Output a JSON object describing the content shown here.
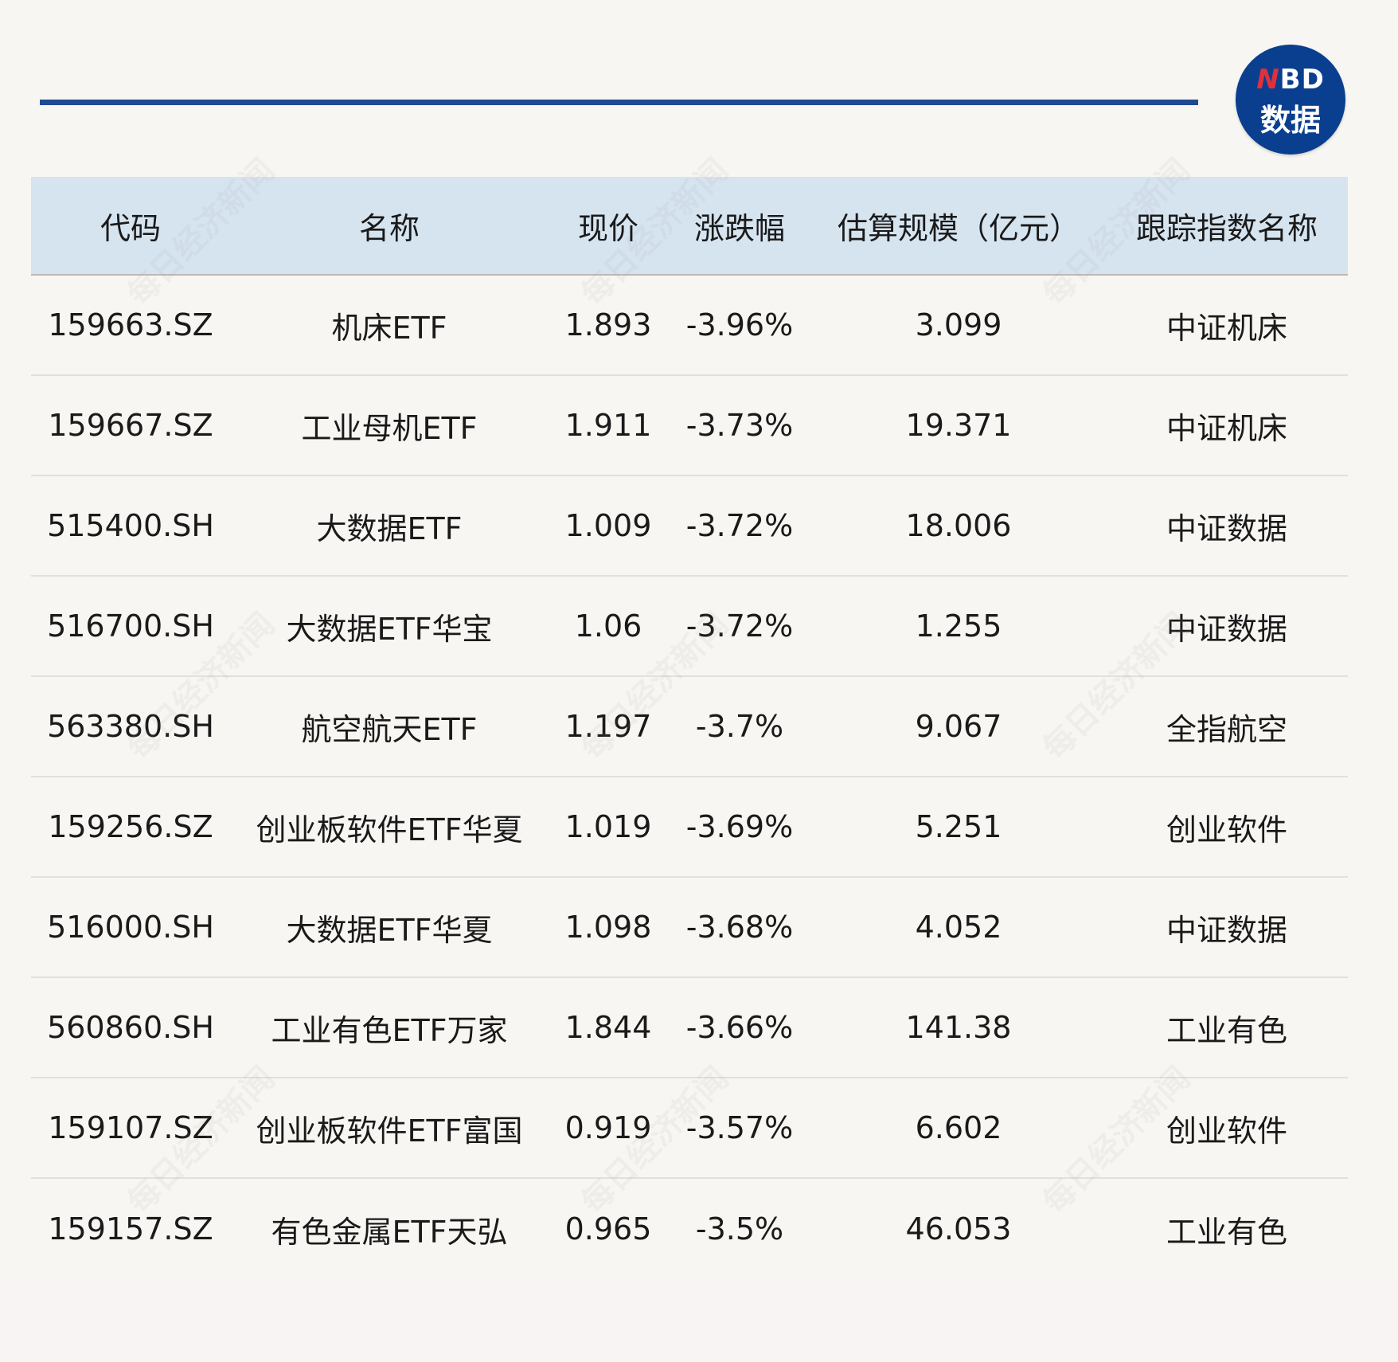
{
  "brand": {
    "logo_top": "NBD",
    "logo_bottom": "数据",
    "watermark": "每日经济新闻",
    "accent": "#1f4a92",
    "header_bg": "#d6e4f0"
  },
  "table": {
    "headers": [
      "代码",
      "名称",
      "现价",
      "涨跌幅",
      "估算规模（亿元）",
      "跟踪指数名称"
    ],
    "rows": [
      [
        "159663.SZ",
        "机床ETF",
        "1.893",
        "-3.96%",
        "3.099",
        "中证机床"
      ],
      [
        "159667.SZ",
        "工业母机ETF",
        "1.911",
        "-3.73%",
        "19.371",
        "中证机床"
      ],
      [
        "515400.SH",
        "大数据ETF",
        "1.009",
        "-3.72%",
        "18.006",
        "中证数据"
      ],
      [
        "516700.SH",
        "大数据ETF华宝",
        "1.06",
        "-3.72%",
        "1.255",
        "中证数据"
      ],
      [
        "563380.SH",
        "航空航天ETF",
        "1.197",
        "-3.7%",
        "9.067",
        "全指航空"
      ],
      [
        "159256.SZ",
        "创业板软件ETF华夏",
        "1.019",
        "-3.69%",
        "5.251",
        "创业软件"
      ],
      [
        "516000.SH",
        "大数据ETF华夏",
        "1.098",
        "-3.68%",
        "4.052",
        "中证数据"
      ],
      [
        "560860.SH",
        "工业有色ETF万家",
        "1.844",
        "-3.66%",
        "141.38",
        "工业有色"
      ],
      [
        "159107.SZ",
        "创业板软件ETF富国",
        "0.919",
        "-3.57%",
        "6.602",
        "创业软件"
      ],
      [
        "159157.SZ",
        "有色金属ETF天弘",
        "0.965",
        "-3.5%",
        "46.053",
        "工业有色"
      ]
    ]
  }
}
